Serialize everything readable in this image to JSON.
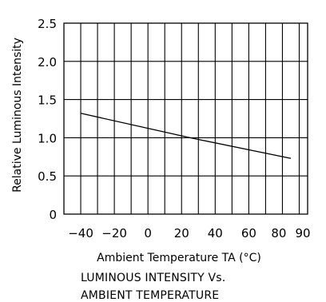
{
  "chart_data": {
    "type": "line",
    "xlabel": "Ambient Temperature TA (°C)",
    "ylabel": "Relative Luminous Intensity",
    "xlim": [
      -50,
      95
    ],
    "ylim": [
      0,
      2.5
    ],
    "x_ticks": [
      -40,
      -20,
      0,
      20,
      40,
      60,
      80,
      90
    ],
    "x_tick_labels": [
      "−40",
      "−20",
      "0",
      "20",
      "40",
      "60",
      "80",
      "90"
    ],
    "y_ticks": [
      0,
      0.5,
      1.0,
      1.5,
      2.0,
      2.5
    ],
    "y_tick_labels": [
      "0",
      "0.5",
      "1.0",
      "1.5",
      "2.0",
      "2.5"
    ],
    "grid": true,
    "series": [
      {
        "x": [
          -40,
          25,
          85
        ],
        "y": [
          1.32,
          1.0,
          0.73
        ]
      }
    ]
  },
  "caption": {
    "line1": "LUMINOUS INTENSITY Vs.",
    "line2": "AMBIENT TEMPERATURE"
  },
  "colors": {
    "line": "#000000",
    "grid": "#000000",
    "background": "#ffffff"
  }
}
